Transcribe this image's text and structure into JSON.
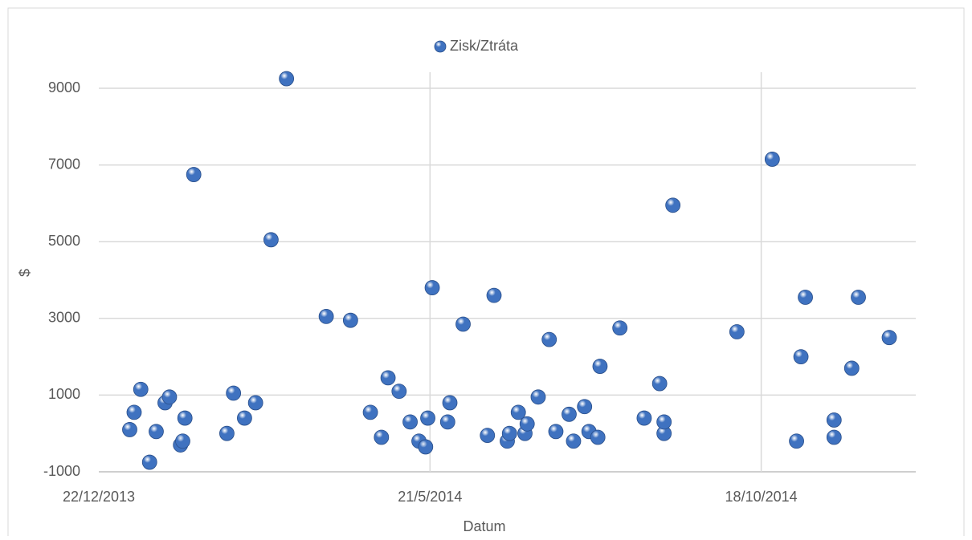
{
  "chart_data": {
    "type": "scatter",
    "xlabel": "Datum",
    "ylabel": "$",
    "series": [
      {
        "name": "Zisk/Ztráta",
        "color": "#3f72c0",
        "x": [
          "2014-01-05",
          "2014-01-07",
          "2014-01-10",
          "2014-01-14",
          "2014-01-17",
          "2014-01-21",
          "2014-01-23",
          "2014-01-28",
          "2014-01-29",
          "2014-01-30",
          "2014-02-03",
          "2014-02-18",
          "2014-02-21",
          "2014-02-26",
          "2014-03-03",
          "2014-03-10",
          "2014-03-17",
          "2014-04-04",
          "2014-04-15",
          "2014-04-24",
          "2014-04-29",
          "2014-05-02",
          "2014-05-07",
          "2014-05-12",
          "2014-05-16",
          "2014-05-19",
          "2014-05-20",
          "2014-05-22",
          "2014-05-29",
          "2014-05-30",
          "2014-06-05",
          "2014-06-16",
          "2014-06-19",
          "2014-06-25",
          "2014-06-26",
          "2014-06-30",
          "2014-07-03",
          "2014-07-04",
          "2014-07-09",
          "2014-07-14",
          "2014-07-17",
          "2014-07-23",
          "2014-07-25",
          "2014-07-30",
          "2014-08-01",
          "2014-08-05",
          "2014-08-06",
          "2014-08-15",
          "2014-08-26",
          "2014-09-02",
          "2014-09-04",
          "2014-09-04",
          "2014-09-08",
          "2014-10-07",
          "2014-10-23",
          "2014-11-03",
          "2014-11-05",
          "2014-11-07",
          "2014-11-20",
          "2014-11-20",
          "2014-11-28",
          "2014-12-01",
          "2014-12-15"
        ],
        "values": [
          100,
          550,
          1150,
          -750,
          50,
          800,
          950,
          -300,
          -200,
          400,
          6750,
          0,
          1050,
          400,
          800,
          5050,
          9250,
          3050,
          2950,
          550,
          -100,
          1450,
          1100,
          300,
          -200,
          -350,
          400,
          3800,
          300,
          800,
          2850,
          -50,
          3600,
          -200,
          0,
          550,
          0,
          250,
          950,
          2450,
          50,
          500,
          -200,
          700,
          50,
          -100,
          1750,
          2750,
          400,
          1300,
          0,
          300,
          5950,
          2650,
          7150,
          -200,
          2000,
          3550,
          -100,
          350,
          1700,
          3550,
          2500
        ]
      }
    ],
    "xlim": [
      "2013-12-22",
      "2014-12-27"
    ],
    "xticks": [
      {
        "value": "2013-12-22",
        "label": "22/12/2013"
      },
      {
        "value": "2014-05-21",
        "label": "21/5/2014"
      },
      {
        "value": "2014-10-18",
        "label": "18/10/2014"
      }
    ],
    "ylim": [
      -1000,
      9000
    ],
    "yticks": [
      -1000,
      1000,
      3000,
      5000,
      7000,
      9000
    ],
    "grid": true,
    "legend": "top"
  }
}
